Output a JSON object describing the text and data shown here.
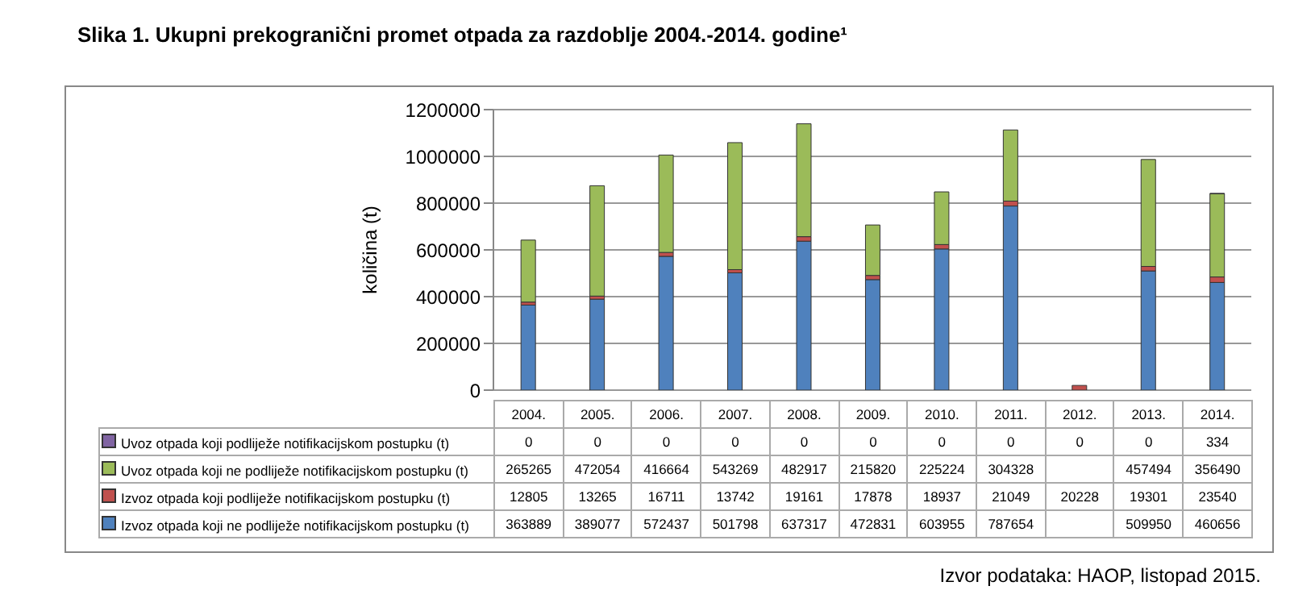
{
  "chart_data": {
    "type": "bar",
    "title": "Slika 1. Ukupni prekogranični promet otpada za razdoblje 2004.-2014. godine¹",
    "ylabel": "količina (t)",
    "categories": [
      "2004.",
      "2005.",
      "2006.",
      "2007.",
      "2008.",
      "2009.",
      "2010.",
      "2011.",
      "2012.",
      "2013.",
      "2014."
    ],
    "series": [
      {
        "name": "Izvoz otpada koji ne podliježe notifikacijskom postupku  (t)",
        "color": "#4f81bd",
        "values": [
          363889,
          389077,
          572437,
          501798,
          637317,
          472831,
          603955,
          787654,
          null,
          509950,
          460656
        ]
      },
      {
        "name": "Izvoz otpada koji podliježe notifikacijskom postupku  (t)",
        "color": "#c0504d",
        "values": [
          12805,
          13265,
          16711,
          13742,
          19161,
          17878,
          18937,
          21049,
          20228,
          19301,
          23540
        ]
      },
      {
        "name": "Uvoz otpada koji ne podliježe notifikacijskom postupku  (t)",
        "color": "#9bbb59",
        "values": [
          265265,
          472054,
          416664,
          543269,
          482917,
          215820,
          225224,
          304328,
          null,
          457494,
          356490
        ]
      },
      {
        "name": "Uvoz otpada koji podliježe notifikacijskom postupku  (t)",
        "color": "#8064a2",
        "values": [
          0,
          0,
          0,
          0,
          0,
          0,
          0,
          0,
          0,
          0,
          334
        ]
      }
    ],
    "stacked": true,
    "ylim": [
      0,
      1200000
    ],
    "yticks": [
      0,
      200000,
      400000,
      600000,
      800000,
      1000000,
      1200000
    ],
    "grid": "y",
    "legend": "bottom",
    "data_labels": true,
    "annotations": [
      "Izvor podataka: HAOP, listopad 2015."
    ]
  }
}
